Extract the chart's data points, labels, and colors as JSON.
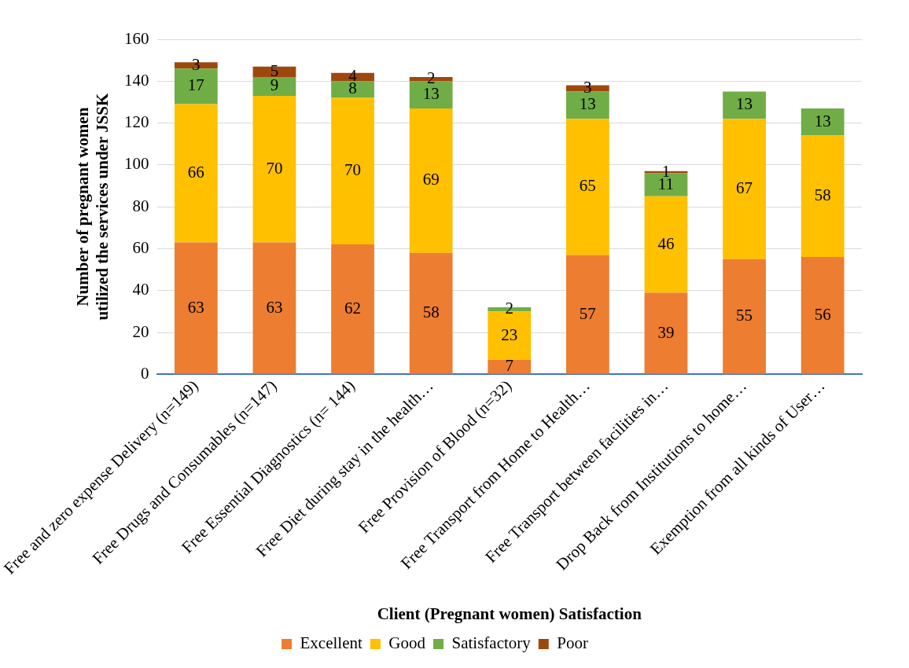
{
  "chart_data": {
    "type": "bar",
    "stacked": true,
    "xlabel": "Client (Pregnant women) Satisfaction",
    "ylabel": "Number of pregnant women utilized the services under JSSK",
    "categories": [
      "Free and zero expense Delivery (n=149)",
      "Free Drugs and Consumables (n=147)",
      "Free Essential Diagnostics (n= 144)",
      "Free Diet during stay in the health…",
      "Free Provision of Blood (n=32)",
      "Free Transport from Home to Health…",
      "Free Transport between facilities in…",
      "Drop Back from Institutions to home…",
      "Exemption from all kinds of User…"
    ],
    "series": [
      {
        "name": "Excellent",
        "color": "#ed7d31",
        "values": [
          63,
          63,
          62,
          58,
          7,
          57,
          39,
          55,
          56
        ]
      },
      {
        "name": "Good",
        "color": "#ffc000",
        "values": [
          66,
          70,
          70,
          69,
          23,
          65,
          46,
          67,
          58
        ]
      },
      {
        "name": "Satisfactory",
        "color": "#70ad47",
        "values": [
          17,
          9,
          8,
          13,
          2,
          13,
          11,
          13,
          13
        ]
      },
      {
        "name": "Poor",
        "color": "#9e480e",
        "values": [
          3,
          5,
          4,
          2,
          null,
          3,
          1,
          null,
          null
        ]
      }
    ],
    "ylim": [
      0,
      160
    ],
    "yticks": [
      0,
      20,
      40,
      60,
      80,
      100,
      120,
      140,
      160
    ],
    "grid": "y",
    "legend": "bottom",
    "data_labels": true
  }
}
